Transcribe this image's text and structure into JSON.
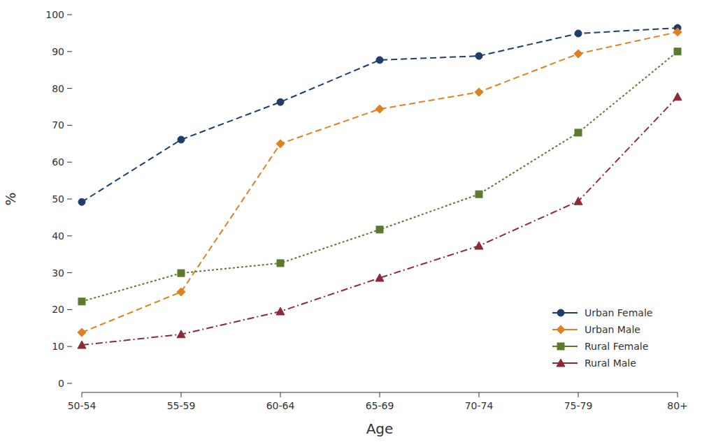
{
  "chart_data": {
    "type": "line",
    "x_label": "Age",
    "y_label": "%",
    "categories": [
      "50-54",
      "55-59",
      "60-64",
      "65-69",
      "70-74",
      "75-79",
      "80+"
    ],
    "series": [
      {
        "name": "Urban Female",
        "color": "#1f3d6b",
        "marker": "circle",
        "line_style": "dashed",
        "values": [
          49.2,
          66.1,
          76.3,
          87.7,
          88.8,
          94.9,
          96.4
        ]
      },
      {
        "name": "Urban Male",
        "color": "#e0801f",
        "marker": "diamond",
        "line_style": "dashed",
        "values": [
          13.8,
          24.8,
          65.0,
          74.4,
          79.0,
          89.4,
          95.3
        ]
      },
      {
        "name": "Rural Female",
        "color": "#5b7a2f",
        "marker": "square",
        "line_style": "dotted",
        "values": [
          22.2,
          29.9,
          32.6,
          41.7,
          51.3,
          68.0,
          90.0
        ]
      },
      {
        "name": "Rural Male",
        "color": "#8c2a36",
        "marker": "triangle",
        "line_style": "dashdot",
        "values": [
          10.4,
          13.3,
          19.5,
          28.6,
          37.3,
          49.4,
          77.7
        ]
      }
    ],
    "ylim": [
      0,
      100
    ],
    "yticks": [
      0,
      10,
      20,
      30,
      40,
      50,
      60,
      70,
      80,
      90,
      100
    ],
    "grid": false,
    "legend": "lower right"
  }
}
